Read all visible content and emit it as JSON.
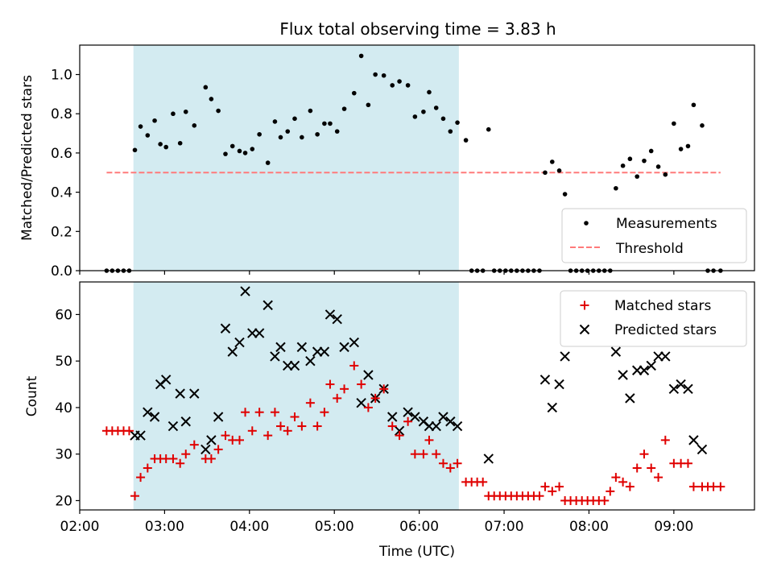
{
  "colors": {
    "shade": "#a8d8e4",
    "matched": "#e00000",
    "predicted": "#000000",
    "measurement": "#000000",
    "threshold": "#ff7a7a"
  },
  "chart_data": [
    {
      "type": "scatter",
      "title": "Flux total observing time = 3.83 h",
      "ylabel": "Matched/Predicted stars",
      "xlim": [
        2.0,
        9.95
      ],
      "ylim": [
        0,
        1.15
      ],
      "y_ticks": [
        0,
        0.2,
        0.4,
        0.6,
        0.8,
        1.0
      ],
      "y_tick_labels": [
        "0.0",
        "0.2",
        "0.4",
        "0.6",
        "0.8",
        "1.0"
      ],
      "shaded_region": [
        2.633,
        6.467
      ],
      "legend": {
        "placement": "lower-right",
        "entries": [
          "Measurements",
          "Threshold"
        ]
      },
      "threshold": {
        "name": "Threshold",
        "y": 0.5,
        "x_range": [
          2.317,
          9.55
        ]
      },
      "series": [
        {
          "name": "Measurements",
          "x": [
            2.317,
            2.383,
            2.45,
            2.517,
            2.583,
            2.65,
            2.717,
            2.8,
            2.883,
            2.95,
            3.017,
            3.1,
            3.183,
            3.25,
            3.35,
            3.483,
            3.55,
            3.633,
            3.717,
            3.8,
            3.883,
            3.95,
            4.033,
            4.117,
            4.217,
            4.3,
            4.367,
            4.45,
            4.533,
            4.617,
            4.717,
            4.8,
            4.883,
            4.95,
            5.033,
            5.117,
            5.233,
            5.317,
            5.4,
            5.483,
            5.583,
            5.683,
            5.767,
            5.867,
            5.95,
            6.05,
            6.117,
            6.2,
            6.283,
            6.367,
            6.45,
            6.55,
            6.617,
            6.683,
            6.75,
            6.817,
            6.883,
            6.95,
            7.017,
            7.083,
            7.15,
            7.217,
            7.283,
            7.35,
            7.417,
            7.483,
            7.567,
            7.65,
            7.717,
            7.783,
            7.85,
            7.917,
            7.983,
            8.05,
            8.117,
            8.183,
            8.25,
            8.317,
            8.4,
            8.483,
            8.567,
            8.65,
            8.733,
            8.817,
            8.9,
            9.0,
            9.083,
            9.167,
            9.233,
            9.333,
            9.4,
            9.467,
            9.55
          ],
          "y": [
            0.0,
            0.0,
            0.0,
            0.0,
            0.0,
            0.615,
            0.735,
            0.69,
            0.765,
            0.645,
            0.63,
            0.8,
            0.65,
            0.81,
            0.74,
            0.935,
            0.875,
            0.815,
            0.595,
            0.635,
            0.61,
            0.6,
            0.62,
            0.695,
            0.55,
            0.76,
            0.68,
            0.71,
            0.775,
            0.68,
            0.815,
            0.695,
            0.75,
            0.75,
            0.71,
            0.825,
            0.905,
            1.095,
            0.845,
            1.0,
            0.995,
            0.945,
            0.965,
            0.945,
            0.785,
            0.81,
            0.91,
            0.83,
            0.775,
            0.71,
            0.755,
            0.665,
            0.0,
            0.0,
            0.0,
            0.72,
            0.0,
            0.0,
            0.0,
            0.0,
            0.0,
            0.0,
            0.0,
            0.0,
            0.0,
            0.5,
            0.555,
            0.51,
            0.39,
            0.0,
            0.0,
            0.0,
            0.0,
            0.0,
            0.0,
            0.0,
            0.0,
            0.42,
            0.535,
            0.57,
            0.48,
            0.56,
            0.61,
            0.53,
            0.49,
            0.75,
            0.62,
            0.635,
            0.845,
            0.74,
            0.0,
            0.0,
            0.0
          ]
        }
      ]
    },
    {
      "type": "scatter",
      "xlabel": "Time (UTC)",
      "ylabel": "Count",
      "xlim": [
        2.0,
        9.95
      ],
      "ylim": [
        18,
        67
      ],
      "x_ticks": [
        2,
        3,
        4,
        5,
        6,
        7,
        8,
        9
      ],
      "x_tick_labels": [
        "02:00",
        "03:00",
        "04:00",
        "05:00",
        "06:00",
        "07:00",
        "08:00",
        "09:00"
      ],
      "y_ticks": [
        20,
        30,
        40,
        50,
        60
      ],
      "y_tick_labels": [
        "20",
        "30",
        "40",
        "50",
        "60"
      ],
      "shaded_region": [
        2.633,
        6.467
      ],
      "legend": {
        "placement": "top-right",
        "entries": [
          "Matched stars",
          "Predicted stars"
        ]
      },
      "series": [
        {
          "name": "Matched stars",
          "marker": "plus",
          "x": [
            2.317,
            2.383,
            2.45,
            2.517,
            2.583,
            2.65,
            2.717,
            2.8,
            2.883,
            2.95,
            3.017,
            3.1,
            3.183,
            3.25,
            3.35,
            3.483,
            3.55,
            3.633,
            3.717,
            3.8,
            3.883,
            3.95,
            4.033,
            4.117,
            4.217,
            4.3,
            4.367,
            4.45,
            4.533,
            4.617,
            4.717,
            4.8,
            4.883,
            4.95,
            5.033,
            5.117,
            5.233,
            5.317,
            5.4,
            5.483,
            5.583,
            5.683,
            5.767,
            5.867,
            5.95,
            6.05,
            6.117,
            6.2,
            6.283,
            6.367,
            6.45,
            6.55,
            6.617,
            6.683,
            6.75,
            6.817,
            6.883,
            6.95,
            7.017,
            7.083,
            7.15,
            7.217,
            7.283,
            7.35,
            7.417,
            7.483,
            7.567,
            7.65,
            7.717,
            7.783,
            7.85,
            7.917,
            7.983,
            8.05,
            8.117,
            8.183,
            8.25,
            8.317,
            8.4,
            8.483,
            8.567,
            8.65,
            8.733,
            8.817,
            8.9,
            9.0,
            9.083,
            9.167,
            9.233,
            9.333,
            9.4,
            9.467,
            9.55
          ],
          "y": [
            35,
            35,
            35,
            35,
            35,
            21,
            25,
            27,
            29,
            29,
            29,
            29,
            28,
            30,
            32,
            29,
            29,
            31,
            34,
            33,
            33,
            39,
            35,
            39,
            34,
            39,
            36,
            35,
            38,
            36,
            41,
            36,
            39,
            45,
            42,
            44,
            49,
            45,
            40,
            42,
            44,
            36,
            34,
            37,
            30,
            30,
            33,
            30,
            28,
            27,
            28,
            24,
            24,
            24,
            24,
            21,
            21,
            21,
            21,
            21,
            21,
            21,
            21,
            21,
            21,
            23,
            22,
            23,
            20,
            20,
            20,
            20,
            20,
            20,
            20,
            20,
            22,
            25,
            24,
            23,
            27,
            30,
            27,
            25,
            33,
            28,
            28,
            28,
            23,
            23,
            23,
            23,
            23
          ]
        },
        {
          "name": "Predicted stars",
          "marker": "x",
          "x": [
            2.65,
            2.717,
            2.8,
            2.883,
            2.95,
            3.017,
            3.1,
            3.183,
            3.25,
            3.35,
            3.483,
            3.55,
            3.633,
            3.717,
            3.8,
            3.883,
            3.95,
            4.033,
            4.117,
            4.217,
            4.3,
            4.367,
            4.45,
            4.533,
            4.617,
            4.717,
            4.8,
            4.883,
            4.95,
            5.033,
            5.117,
            5.233,
            5.317,
            5.4,
            5.483,
            5.583,
            5.683,
            5.767,
            5.867,
            5.95,
            6.05,
            6.117,
            6.2,
            6.283,
            6.367,
            6.45,
            6.817,
            7.483,
            7.567,
            7.65,
            7.717,
            8.317,
            8.4,
            8.483,
            8.567,
            8.65,
            8.733,
            8.817,
            8.9,
            9.0,
            9.083,
            9.167,
            9.233,
            9.333
          ],
          "y": [
            34,
            34,
            39,
            38,
            45,
            46,
            36,
            43,
            37,
            43,
            31,
            33,
            38,
            57,
            52,
            54,
            65,
            56,
            56,
            62,
            51,
            53,
            49,
            49,
            53,
            50,
            52,
            52,
            60,
            59,
            53,
            54,
            41,
            47,
            42,
            44,
            38,
            35,
            39,
            38,
            37,
            36,
            36,
            38,
            37,
            36,
            29,
            46,
            40,
            45,
            51,
            52,
            47,
            42,
            48,
            48,
            49,
            51,
            51,
            44,
            45,
            44,
            33,
            31
          ]
        }
      ]
    }
  ]
}
